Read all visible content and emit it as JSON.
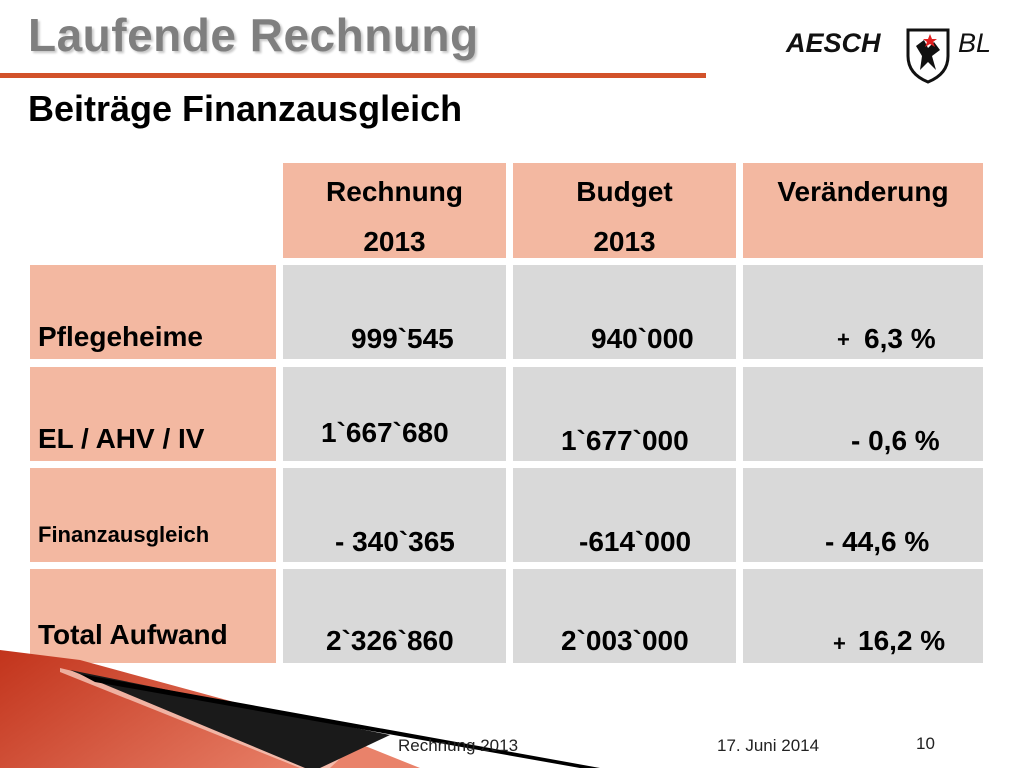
{
  "header": {
    "title": "Laufende Rechnung",
    "subtitle": "Beiträge Finanzausgleich",
    "logo_left": "AESCH",
    "logo_right": "BL"
  },
  "table": {
    "columns": [
      {
        "line1": "Rechnung",
        "line2": "2013"
      },
      {
        "line1": "Budget",
        "line2": "2013"
      },
      {
        "line1": "Veränderung",
        "line2": ""
      }
    ],
    "rows": [
      {
        "label": "Pflegeheime",
        "rechnung": "999`545",
        "budget": "940`000",
        "sign": "+",
        "change": "6,3 %"
      },
      {
        "label": "EL / AHV / IV",
        "rechnung": "1`667`680",
        "budget": "1`677`000",
        "sign": "",
        "change": "- 0,6 %"
      },
      {
        "label": "Finanzausgleich",
        "rechnung": "- 340`365",
        "budget": "-614`000",
        "sign": "",
        "change": "- 44,6 %"
      },
      {
        "label": "Total Aufwand",
        "rechnung": "2`326`860",
        "budget": "2`003`000",
        "sign": "+",
        "change": "16,2 %"
      }
    ]
  },
  "footer": {
    "center": "Rechnung 2013",
    "date": "17. Juni 2014",
    "page": "10"
  },
  "colors": {
    "accent": "#d2522a",
    "header_fill": "#f3b8a1",
    "value_fill": "#d9d9d9"
  }
}
